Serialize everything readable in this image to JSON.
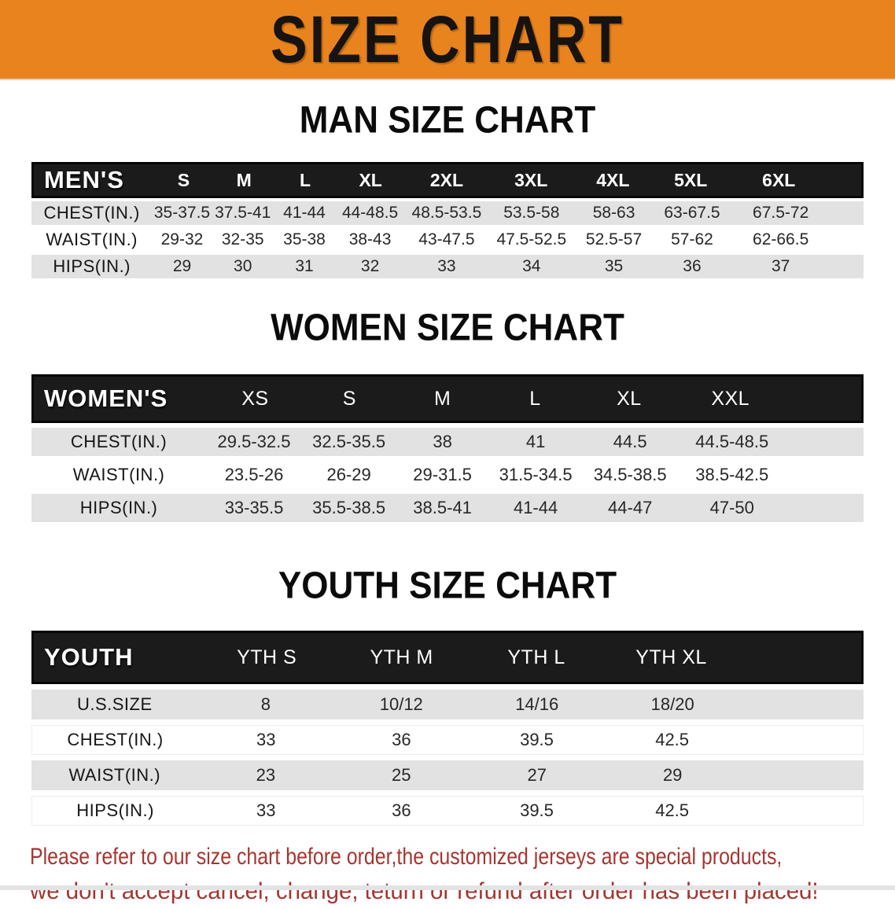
{
  "banner": {
    "title": "SIZE CHART"
  },
  "colors": {
    "banner_bg": "#E8831E",
    "table_header_bg": "#1B1B1B",
    "row_alt_bg": "#E2E2E2",
    "disclaimer_red": "#A53531"
  },
  "men": {
    "heading": "MAN SIZE CHART",
    "corner": "MEN'S",
    "columns": [
      "S",
      "M",
      "L",
      "XL",
      "2XL",
      "3XL",
      "4XL",
      "5XL",
      "6XL"
    ],
    "rows": [
      {
        "label": "CHEST(IN.)",
        "values": [
          "35-37.5",
          "37.5-41",
          "41-44",
          "44-48.5",
          "48.5-53.5",
          "53.5-58",
          "58-63",
          "63-67.5",
          "67.5-72"
        ]
      },
      {
        "label": "WAIST(IN.)",
        "values": [
          "29-32",
          "32-35",
          "35-38",
          "38-43",
          "43-47.5",
          "47.5-52.5",
          "52.5-57",
          "57-62",
          "62-66.5"
        ]
      },
      {
        "label": "HIPS(IN.)",
        "values": [
          "29",
          "30",
          "31",
          "32",
          "33",
          "34",
          "35",
          "36",
          "37"
        ]
      }
    ]
  },
  "women": {
    "heading": "WOMEN SIZE CHART",
    "corner": "WOMEN'S",
    "columns": [
      "XS",
      "S",
      "M",
      "L",
      "XL",
      "XXL"
    ],
    "rows": [
      {
        "label": "CHEST(IN.)",
        "values": [
          "29.5-32.5",
          "32.5-35.5",
          "38",
          "41",
          "44.5",
          "44.5-48.5"
        ]
      },
      {
        "label": "WAIST(IN.)",
        "values": [
          "23.5-26",
          "26-29",
          "29-31.5",
          "31.5-34.5",
          "34.5-38.5",
          "38.5-42.5"
        ]
      },
      {
        "label": "HIPS(IN.)",
        "values": [
          "33-35.5",
          "35.5-38.5",
          "38.5-41",
          "41-44",
          "44-47",
          "47-50"
        ]
      }
    ]
  },
  "youth": {
    "heading": "YOUTH SIZE CHART",
    "corner": "YOUTH",
    "columns": [
      "YTH S",
      "YTH M",
      "YTH L",
      "YTH XL"
    ],
    "rows": [
      {
        "label": "U.S.SIZE",
        "values": [
          "8",
          "10/12",
          "14/16",
          "18/20"
        ]
      },
      {
        "label": "CHEST(IN.)",
        "values": [
          "33",
          "36",
          "39.5",
          "42.5"
        ]
      },
      {
        "label": "WAIST(IN.)",
        "values": [
          "23",
          "25",
          "27",
          "29"
        ]
      },
      {
        "label": "HIPS(IN.)",
        "values": [
          "33",
          "36",
          "39.5",
          "42.5"
        ]
      }
    ]
  },
  "disclaimer": {
    "line1": "Please refer to our size chart before order,the customized jerseys are special products,",
    "line2": "we don't accept cancel, change, teturn or refund after order has been placed!"
  }
}
